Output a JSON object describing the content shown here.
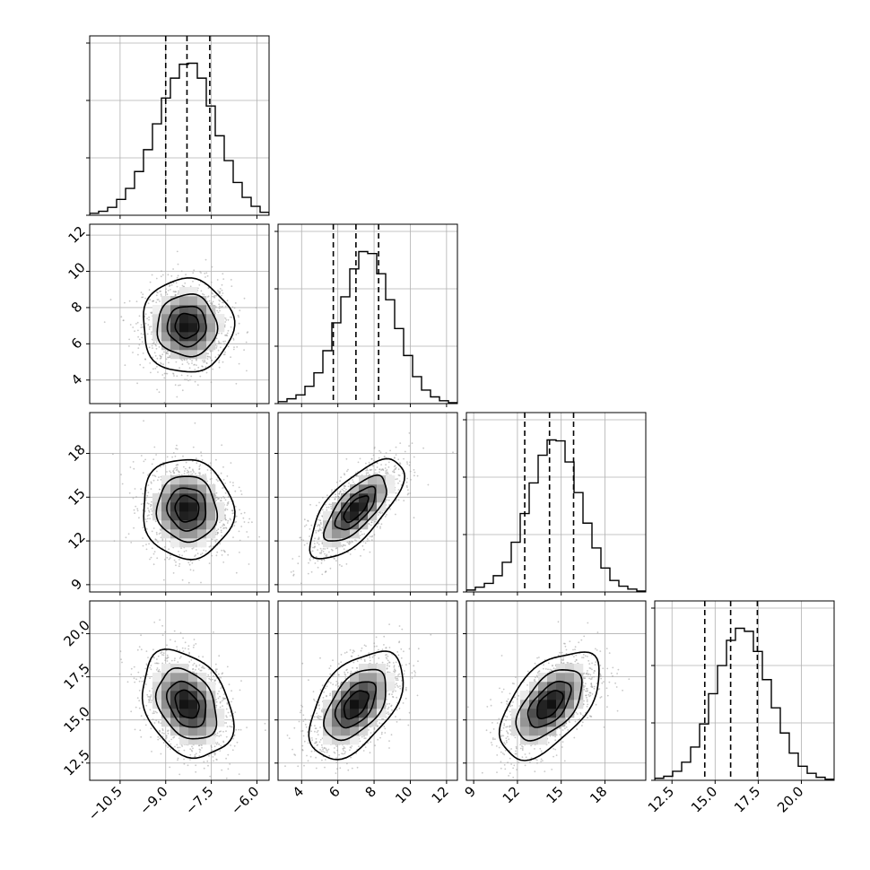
{
  "chart_data": {
    "type": "corner",
    "title": "",
    "n_params": 4,
    "params": [
      {
        "index": 0,
        "ticks": [
          -10.5,
          -9.0,
          -7.5,
          -6.0
        ],
        "tick_labels": [
          "−10.5",
          "−9.0",
          "−7.5",
          "−6.0"
        ],
        "range": [
          -11.5,
          -5.6
        ],
        "quantiles": [
          -9.0,
          -8.3,
          -7.55
        ],
        "mean": -8.3,
        "sd": 0.72
      },
      {
        "index": 1,
        "ticks": [
          4,
          6,
          8,
          10,
          12
        ],
        "tick_labels": [
          "4",
          "6",
          "8",
          "10",
          "12"
        ],
        "range": [
          2.7,
          12.6
        ],
        "quantiles": [
          5.75,
          7.0,
          8.25
        ],
        "mean": 7.0,
        "sd": 1.25
      },
      {
        "index": 2,
        "ticks": [
          9,
          12,
          15,
          18
        ],
        "tick_labels": [
          "9",
          "12",
          "15",
          "18"
        ],
        "range": [
          8.5,
          20.8
        ],
        "quantiles": [
          12.5,
          14.2,
          15.85
        ],
        "mean": 14.2,
        "sd": 1.65
      },
      {
        "index": 3,
        "ticks": [
          12.5,
          15.0,
          17.5,
          20.0
        ],
        "tick_labels": [
          "12.5",
          "15.0",
          "17.5",
          "20.0"
        ],
        "range": [
          11.5,
          21.9
        ],
        "quantiles": [
          14.4,
          15.9,
          17.45
        ],
        "mean": 15.9,
        "sd": 1.5
      }
    ],
    "histograms": [
      {
        "param": 0,
        "bin_start": -11.5,
        "bin_width": 0.295,
        "counts": [
          2,
          4,
          8,
          16,
          27,
          44,
          66,
          92,
          118,
          138,
          152,
          153,
          138,
          110,
          80,
          55,
          33,
          18,
          9,
          3
        ]
      },
      {
        "param": 1,
        "bin_start": 2.7,
        "bin_width": 0.495,
        "counts": [
          2,
          5,
          9,
          18,
          32,
          55,
          84,
          111,
          140,
          158,
          156,
          135,
          108,
          78,
          50,
          28,
          14,
          7,
          3,
          1
        ]
      },
      {
        "param": 2,
        "bin_start": 8.5,
        "bin_width": 0.615,
        "counts": [
          2,
          5,
          9,
          17,
          31,
          52,
          82,
          114,
          143,
          159,
          158,
          136,
          104,
          72,
          46,
          25,
          12,
          6,
          3,
          1
        ]
      },
      {
        "param": 3,
        "bin_start": 11.5,
        "bin_width": 0.52,
        "counts": [
          2,
          4,
          9,
          18,
          33,
          56,
          86,
          114,
          139,
          151,
          148,
          128,
          100,
          72,
          47,
          27,
          14,
          7,
          3,
          1
        ]
      }
    ],
    "pairs": [
      {
        "x_param": 0,
        "y_param": 1,
        "correlation": 0.0
      },
      {
        "x_param": 0,
        "y_param": 2,
        "correlation": -0.05
      },
      {
        "x_param": 0,
        "y_param": 3,
        "correlation": -0.3
      },
      {
        "x_param": 1,
        "y_param": 2,
        "correlation": 0.7
      },
      {
        "x_param": 1,
        "y_param": 3,
        "correlation": 0.5
      },
      {
        "x_param": 2,
        "y_param": 3,
        "correlation": 0.55
      }
    ],
    "contour_levels_sigma": [
      0.5,
      1.0,
      1.5,
      2.0
    ],
    "quantile_line_style": "dashed",
    "grid": true,
    "colors": {
      "line": "#000000",
      "grid": "#b0b0b0",
      "points": "#9a9a9a",
      "fill_dark": "#000000",
      "background": "#ffffff"
    }
  }
}
